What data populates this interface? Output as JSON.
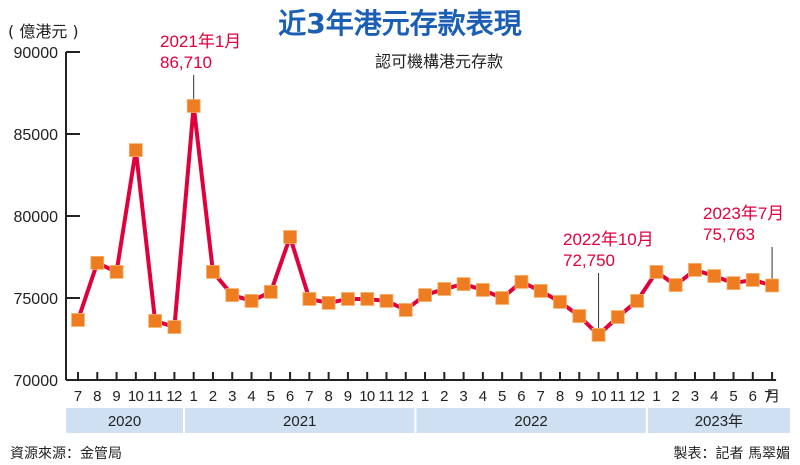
{
  "title": "近3年港元存款表現",
  "unit_label": "( 億港元 )",
  "subtitle": "認可機構港元存款",
  "source": "資源來源：金管局",
  "credit": "製表：記者 馬翠媚",
  "colors": {
    "line": "#e0003c",
    "marker": "#ee7d22",
    "title": "#1a5fb4",
    "year_band": "#cfe0f3"
  },
  "chart_data": {
    "type": "line",
    "title": "近3年港元存款表現",
    "ylabel": "億港元",
    "ylim": [
      70000,
      90000
    ],
    "yticks": [
      "70000",
      "75000",
      "80000",
      "85000",
      "90000"
    ],
    "ytick_values": [
      70000,
      75000,
      80000,
      85000,
      90000
    ],
    "x_month_labels": [
      "7",
      "8",
      "9",
      "10",
      "11",
      "12",
      "1",
      "2",
      "3",
      "4",
      "5",
      "6",
      "7",
      "8",
      "9",
      "10",
      "11",
      "12",
      "1",
      "2",
      "3",
      "4",
      "5",
      "6",
      "7",
      "8",
      "9",
      "10",
      "11",
      "12",
      "1",
      "2",
      "3",
      "4",
      "5",
      "6",
      "7月"
    ],
    "years": [
      {
        "label": "2020",
        "start": 0,
        "end": 5
      },
      {
        "label": "2021",
        "start": 6,
        "end": 17
      },
      {
        "label": "2022",
        "start": 18,
        "end": 29
      },
      {
        "label": "2023年",
        "start": 30,
        "end": 36
      }
    ],
    "series": [
      {
        "name": "認可機構港元存款",
        "values": [
          73660,
          77140,
          76590,
          84020,
          73600,
          73230,
          86710,
          76590,
          75180,
          74820,
          75370,
          78720,
          74940,
          74700,
          74940,
          74940,
          74820,
          74270,
          75180,
          75550,
          75850,
          75490,
          75000,
          75980,
          75430,
          74760,
          73900,
          72750,
          73840,
          74820,
          76590,
          75790,
          76710,
          76340,
          75910,
          76100,
          75763
        ]
      }
    ],
    "annotations": [
      {
        "index": 6,
        "line1": "2021年1月",
        "line2": "86,710"
      },
      {
        "index": 27,
        "line1": "2022年10月",
        "line2": "72,750"
      },
      {
        "index": 36,
        "line1": "2023年7月",
        "line2": "75,763"
      }
    ]
  }
}
